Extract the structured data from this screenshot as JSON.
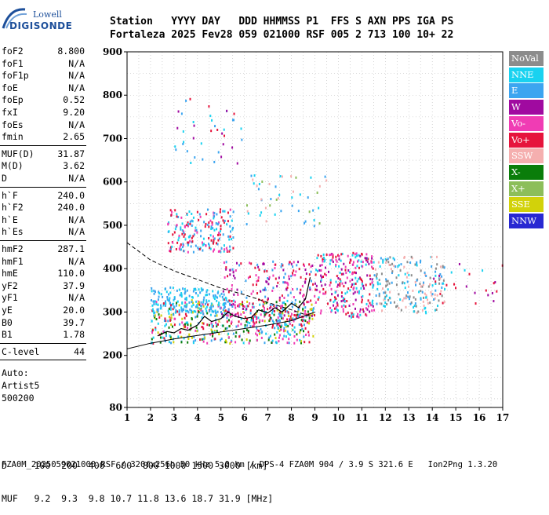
{
  "logo": {
    "line1": "Lowell",
    "line2": "DIGISONDE"
  },
  "header": {
    "labels": "Station   YYYY DAY   DDD HHMMSS P1  FFS S AXN PPS IGA PS",
    "values": "Fortaleza 2025 Fev28 059 021000 RSF 005 2 713 100 10+ 22"
  },
  "params": [
    {
      "name": "foF2",
      "value": "8.800"
    },
    {
      "name": "foF1",
      "value": "N/A"
    },
    {
      "name": "foF1p",
      "value": "N/A"
    },
    {
      "name": "foE",
      "value": "N/A"
    },
    {
      "name": "foEp",
      "value": "0.52"
    },
    {
      "name": "fxI",
      "value": "9.20"
    },
    {
      "name": "foEs",
      "value": "N/A"
    },
    {
      "name": "fmin",
      "value": "2.65"
    },
    {
      "name": "MUF(D)",
      "value": "31.87"
    },
    {
      "name": "M(D)",
      "value": "3.62"
    },
    {
      "name": "D",
      "value": "N/A"
    },
    {
      "name": "h`F",
      "value": "240.0"
    },
    {
      "name": "h`F2",
      "value": "240.0"
    },
    {
      "name": "h`E",
      "value": "N/A"
    },
    {
      "name": "h`Es",
      "value": "N/A"
    },
    {
      "name": "hmF2",
      "value": "287.1"
    },
    {
      "name": "hmF1",
      "value": "N/A"
    },
    {
      "name": "hmE",
      "value": "110.0"
    },
    {
      "name": "yF2",
      "value": "37.9"
    },
    {
      "name": "yF1",
      "value": "N/A"
    },
    {
      "name": "yE",
      "value": "20.0"
    },
    {
      "name": "B0",
      "value": "39.7"
    },
    {
      "name": "B1",
      "value": "1.78"
    },
    {
      "name": "C-level",
      "value": "44"
    }
  ],
  "notes": [
    "Auto:",
    "Artist5",
    "500200"
  ],
  "legend": [
    {
      "label": "NoVal",
      "color": "#8c8c8c"
    },
    {
      "label": "NNE",
      "color": "#19d2f0"
    },
    {
      "label": "E",
      "color": "#3ca5f0"
    },
    {
      "label": "W",
      "color": "#a00aa0"
    },
    {
      "label": "Vo-",
      "color": "#f03cb4"
    },
    {
      "label": "Vo+",
      "color": "#e6143c"
    },
    {
      "label": "SSW",
      "color": "#f5afaf"
    },
    {
      "label": "X-",
      "color": "#0a7d0a"
    },
    {
      "label": "X+",
      "color": "#8cbe5a"
    },
    {
      "label": "SSE",
      "color": "#d2d20a"
    },
    {
      "label": "NNW",
      "color": "#2828d2"
    }
  ],
  "footer": {
    "d_line": "D     100  200  400  600  800 1000 1500 3000 [km]",
    "muf_line": "MUF   9.2  9.3  9.8 10.7 11.8 13.6 18.7 31.9 [MHz]",
    "file_line": "FZA0M_2025059021000.RSF / 320fx256h 50 kHz 5.0 km / DPS-4 FZA0M 904 / 3.9 S 321.6 E   Ion2Png 1.3.20"
  },
  "chart_data": {
    "type": "scatter",
    "xlim": [
      1,
      17
    ],
    "ylim": [
      80,
      900
    ],
    "x_ticks": [
      1,
      2,
      3,
      4,
      5,
      6,
      7,
      8,
      9,
      10,
      11,
      12,
      13,
      14,
      15,
      16,
      17
    ],
    "y_ticks": [
      80,
      200,
      300,
      400,
      500,
      600,
      700,
      800,
      900
    ],
    "grid": true,
    "legend_placement": "right",
    "trace_line": {
      "x": [
        2.3,
        2.7,
        3.0,
        3.3,
        3.6,
        4.0,
        4.3,
        4.6,
        5.0,
        5.3,
        5.6,
        6.0,
        6.3,
        6.6,
        7.0,
        7.3,
        7.6,
        8.0,
        8.3,
        8.6,
        8.8
      ],
      "y": [
        245,
        255,
        252,
        262,
        258,
        270,
        290,
        278,
        285,
        300,
        290,
        285,
        288,
        305,
        298,
        310,
        300,
        320,
        310,
        330,
        380
      ]
    },
    "dashed_curve": {
      "x": [
        1.0,
        2.0,
        3.0,
        4.0,
        5.0,
        6.0,
        7.0,
        8.0,
        8.8
      ],
      "y": [
        460,
        420,
        395,
        375,
        355,
        340,
        322,
        305,
        290
      ]
    },
    "lower_boundary": {
      "x": [
        1.0,
        2.0,
        3.0,
        4.0,
        5.0,
        6.0,
        7.0,
        8.0,
        9.0
      ],
      "y": [
        215,
        228,
        238,
        246,
        254,
        262,
        270,
        280,
        300
      ]
    },
    "echo_clusters": [
      {
        "x": [
          2.0,
          8.9
        ],
        "y": [
          230,
          330
        ],
        "colors": [
          "#3ca5f0",
          "#19d2f0",
          "#e6143c",
          "#f03cb4",
          "#d2d20a",
          "#0a7d0a"
        ],
        "n": 520
      },
      {
        "x": [
          5.0,
          9.0
        ],
        "y": [
          280,
          420
        ],
        "colors": [
          "#e6143c",
          "#a00aa0",
          "#3ca5f0",
          "#f03cb4"
        ],
        "n": 240
      },
      {
        "x": [
          9.0,
          11.5
        ],
        "y": [
          290,
          440
        ],
        "colors": [
          "#e6143c",
          "#a00aa0",
          "#f03cb4",
          "#19d2f0"
        ],
        "n": 260
      },
      {
        "x": [
          11.5,
          14.5
        ],
        "y": [
          300,
          430
        ],
        "colors": [
          "#f5afaf",
          "#19d2f0",
          "#3ca5f0",
          "#8c8c8c"
        ],
        "n": 200
      },
      {
        "x": [
          2.7,
          5.5
        ],
        "y": [
          440,
          540
        ],
        "colors": [
          "#e6143c",
          "#f03cb4",
          "#19d2f0",
          "#3ca5f0"
        ],
        "n": 200
      },
      {
        "x": [
          2.0,
          5.3
        ],
        "y": [
          300,
          360
        ],
        "colors": [
          "#19d2f0",
          "#3ca5f0"
        ],
        "n": 160
      },
      {
        "x": [
          6.0,
          9.5
        ],
        "y": [
          500,
          620
        ],
        "colors": [
          "#8cbe5a",
          "#19d2f0",
          "#3ca5f0",
          "#f5afaf"
        ],
        "n": 50
      },
      {
        "x": [
          3.0,
          6.0
        ],
        "y": [
          640,
          800
        ],
        "colors": [
          "#e6143c",
          "#19d2f0",
          "#3ca5f0",
          "#a00aa0"
        ],
        "n": 40
      },
      {
        "x": [
          14.0,
          17.0
        ],
        "y": [
          320,
          420
        ],
        "colors": [
          "#a00aa0",
          "#19d2f0",
          "#e6143c"
        ],
        "n": 25
      }
    ]
  }
}
